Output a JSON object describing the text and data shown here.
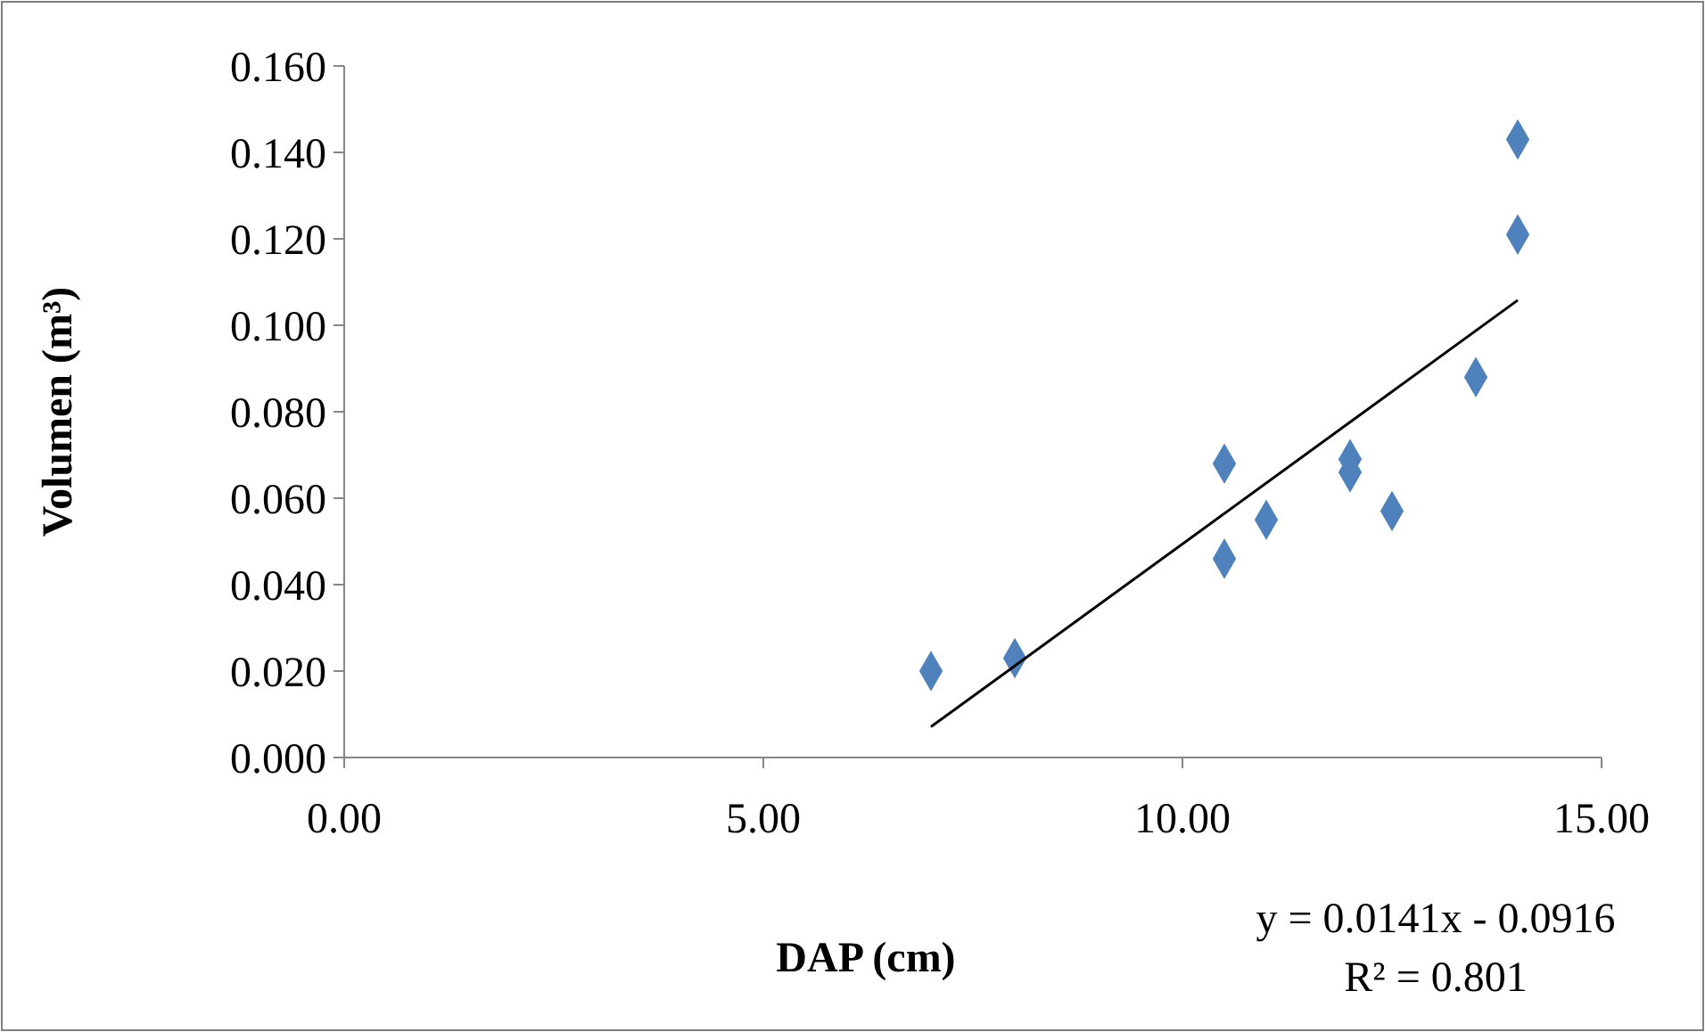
{
  "chart_data": {
    "type": "scatter",
    "xlabel": "DAP (cm)",
    "ylabel": "Volumen (m³)",
    "marker": "diamond",
    "xlim": [
      0,
      15
    ],
    "ylim": [
      0,
      0.16
    ],
    "xticks": [
      {
        "value": 0,
        "label": "0.00"
      },
      {
        "value": 5,
        "label": "5.00"
      },
      {
        "value": 10,
        "label": "10.00"
      },
      {
        "value": 15,
        "label": "15.00"
      }
    ],
    "yticks": [
      {
        "value": 0,
        "label": "0.000"
      },
      {
        "value": 0.02,
        "label": "0.020"
      },
      {
        "value": 0.04,
        "label": "0.040"
      },
      {
        "value": 0.06,
        "label": "0.060"
      },
      {
        "value": 0.08,
        "label": "0.080"
      },
      {
        "value": 0.1,
        "label": "0.100"
      },
      {
        "value": 0.12,
        "label": "0.120"
      },
      {
        "value": 0.14,
        "label": "0.140"
      },
      {
        "value": 0.16,
        "label": "0.160"
      }
    ],
    "series": [
      {
        "color": "#4f81bd",
        "x": [
          7.0,
          8.0,
          10.5,
          10.5,
          11.0,
          12.0,
          12.0,
          12.5,
          13.5,
          14.0,
          14.0
        ],
        "values": [
          0.02,
          0.023,
          0.046,
          0.068,
          0.055,
          0.069,
          0.066,
          0.057,
          0.088,
          0.121,
          0.143
        ]
      },
      {
        "type": "line",
        "color": "#000000",
        "marker": "none",
        "x": [
          7,
          14
        ],
        "values": [
          0.0071,
          0.1058
        ]
      }
    ],
    "annotations": [
      "y = 0.0141x - 0.0916",
      "R² = 0.801"
    ]
  }
}
